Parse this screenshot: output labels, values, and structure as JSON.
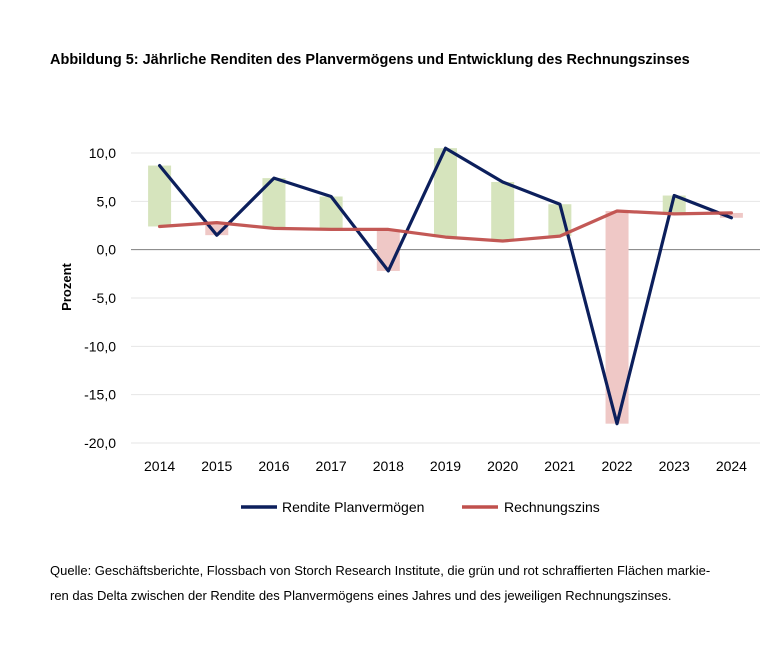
{
  "title": "Abbildung 5: Jährliche Renditen des Planvermögens und Entwicklung des Rechnungszinses",
  "source_line1": "Quelle: Geschäftsberichte, Flossbach von Storch Research Institute, die grün und rot schraffierten Flächen markie-",
  "source_line2": "ren das Delta zwischen der Rendite des Planvermögens eines Jahres und des jeweiligen Rechnungszinses.",
  "chart_data": {
    "type": "line",
    "title": "Abbildung 5: Jährliche Renditen des Planvermögens und Entwicklung des Rechnungszinses",
    "xlabel": "",
    "ylabel": "Prozent",
    "categories": [
      "2014",
      "2015",
      "2016",
      "2017",
      "2018",
      "2019",
      "2020",
      "2021",
      "2022",
      "2023",
      "2024"
    ],
    "ylim": [
      -20,
      10
    ],
    "yticks": [
      10,
      5,
      0,
      -5,
      -10,
      -15,
      -20
    ],
    "ytick_labels": [
      "10,0",
      "5,0",
      "0,0",
      "-5,0",
      "-10,0",
      "-15,0",
      "-20,0"
    ],
    "grid": true,
    "legend_position": "bottom",
    "series": [
      {
        "name": "Rendite Planvermögen",
        "color": "#0c1f5c",
        "values": [
          8.7,
          1.5,
          7.4,
          5.5,
          -2.2,
          10.5,
          7.0,
          4.7,
          -18.0,
          5.6,
          3.3
        ]
      },
      {
        "name": "Rechnungszins",
        "color": "#c0504d",
        "values": [
          2.4,
          2.8,
          2.2,
          2.1,
          2.1,
          1.3,
          0.9,
          1.4,
          4.0,
          3.7,
          3.8
        ]
      }
    ],
    "delta_bars": {
      "positive_color": "#d6e4bd",
      "negative_color": "#efc8c6",
      "ranges": [
        [
          2.4,
          8.7
        ],
        [
          1.5,
          2.8
        ],
        [
          2.2,
          7.4
        ],
        [
          2.1,
          5.5
        ],
        [
          -2.2,
          2.1
        ],
        [
          1.3,
          10.5
        ],
        [
          0.9,
          7.0
        ],
        [
          1.4,
          4.7
        ],
        [
          -18.0,
          4.0
        ],
        [
          3.7,
          5.6
        ],
        [
          3.3,
          3.8
        ]
      ]
    }
  }
}
